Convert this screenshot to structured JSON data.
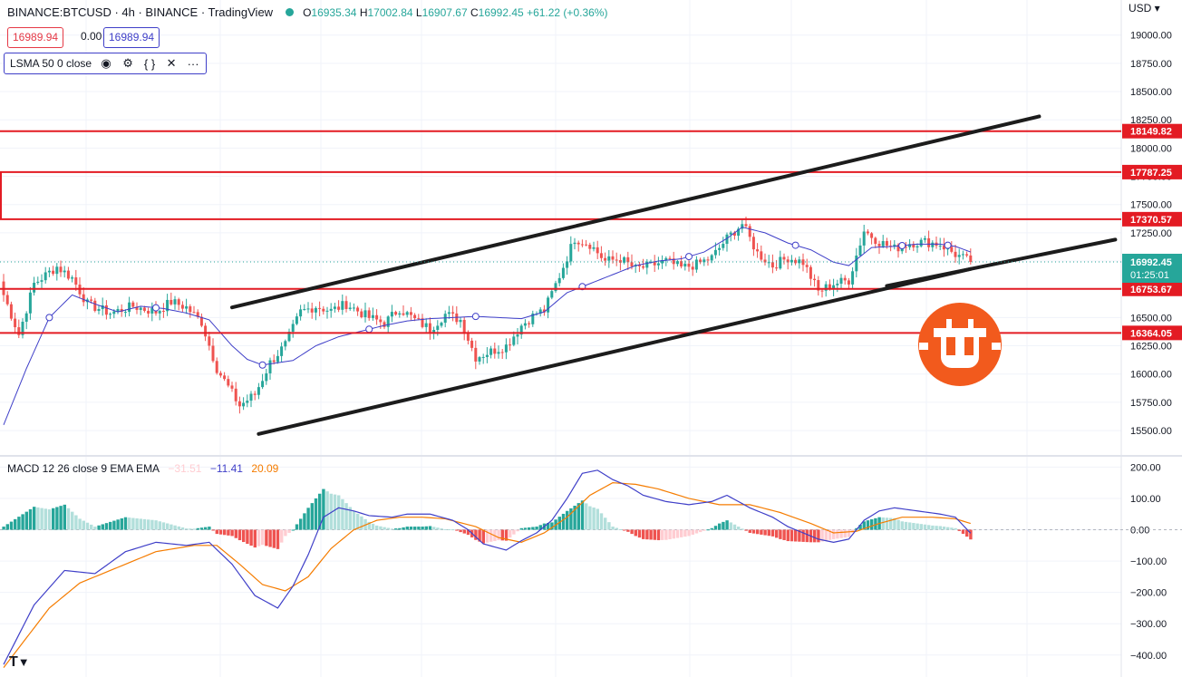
{
  "header": {
    "symbol_title": "BINANCE:BTCUSD · 4h · BINANCE · TradingView",
    "open_label": "O",
    "open": "16935.34",
    "high_label": "H",
    "high": "17002.84",
    "low_label": "L",
    "low": "16907.67",
    "close_label": "C",
    "close": "16992.45",
    "change": "+61.22 (+0.36%)"
  },
  "quote": {
    "bid": "16989.94",
    "spread": "0.00",
    "ask": "16989.94"
  },
  "indicator": {
    "label": "LSMA 50 0 close",
    "icons": [
      "eye-icon",
      "gear-icon",
      "braces-icon",
      "close-icon",
      "more-icon"
    ],
    "icon_glyphs": [
      "◉",
      "⚙",
      "{ }",
      "✕",
      "···"
    ]
  },
  "currency_selector": "USD ▾",
  "macd_legend": {
    "label": "MACD 12 26 close 9 EMA EMA",
    "hist": "−31.51",
    "macd": "−11.41",
    "signal": "20.09"
  },
  "colors": {
    "up": "#26a69a",
    "down": "#ef5350",
    "lsma": "#3f3fc8",
    "level_line": "#e31b23",
    "trendline": "#1c1c1c",
    "macd_line": "#3f3fc8",
    "signal_line": "#f57c00",
    "hist_up_strong": "#26a69a",
    "hist_up_weak": "#b2dfdb",
    "hist_down_strong": "#ef5350",
    "hist_down_weak": "#ffcdd2",
    "logo": "#f25a1d"
  },
  "chart_data": [
    {
      "type": "candlestick",
      "title": "BINANCE:BTCUSD 4h",
      "y_ticks": [
        "19000.00",
        "18750.00",
        "18500.00",
        "18250.00",
        "18000.00",
        "17750.00",
        "17500.00",
        "17250.00",
        "17000.00",
        "16750.00",
        "16500.00",
        "16250.00",
        "16000.00",
        "15750.00",
        "15500.00"
      ],
      "ylim": [
        15300,
        19150
      ],
      "horizontal_levels": [
        "18149.82",
        "17787.25",
        "17370.57",
        "16753.67",
        "16364.05"
      ],
      "current_price": "16992.45",
      "countdown": "01:25:01",
      "grid": true,
      "close_anchors": [
        [
          0,
          16700
        ],
        [
          4,
          16350
        ],
        [
          8,
          16800
        ],
        [
          14,
          16950
        ],
        [
          18,
          16850
        ],
        [
          22,
          16620
        ],
        [
          28,
          16540
        ],
        [
          34,
          16600
        ],
        [
          40,
          16550
        ],
        [
          44,
          16640
        ],
        [
          48,
          16590
        ],
        [
          52,
          16460
        ],
        [
          56,
          16050
        ],
        [
          62,
          15720
        ],
        [
          66,
          15820
        ],
        [
          70,
          16100
        ],
        [
          74,
          16260
        ],
        [
          78,
          16550
        ],
        [
          82,
          16600
        ],
        [
          86,
          16560
        ],
        [
          90,
          16620
        ],
        [
          96,
          16500
        ],
        [
          100,
          16450
        ],
        [
          104,
          16580
        ],
        [
          108,
          16480
        ],
        [
          112,
          16400
        ],
        [
          116,
          16530
        ],
        [
          120,
          16480
        ],
        [
          124,
          16150
        ],
        [
          128,
          16200
        ],
        [
          132,
          16250
        ],
        [
          136,
          16430
        ],
        [
          140,
          16540
        ],
        [
          142,
          16560
        ],
        [
          146,
          16870
        ],
        [
          150,
          17200
        ],
        [
          154,
          17150
        ],
        [
          158,
          17000
        ],
        [
          162,
          17020
        ],
        [
          166,
          16930
        ],
        [
          170,
          16960
        ],
        [
          174,
          17000
        ],
        [
          178,
          16940
        ],
        [
          182,
          16970
        ],
        [
          186,
          17030
        ],
        [
          190,
          17200
        ],
        [
          194,
          17330
        ],
        [
          198,
          17070
        ],
        [
          202,
          16960
        ],
        [
          206,
          17030
        ],
        [
          210,
          16990
        ],
        [
          214,
          16730
        ],
        [
          218,
          16800
        ],
        [
          222,
          16830
        ],
        [
          226,
          17270
        ],
        [
          230,
          17170
        ],
        [
          234,
          17110
        ],
        [
          238,
          17160
        ],
        [
          242,
          17170
        ],
        [
          246,
          17150
        ],
        [
          250,
          17060
        ],
        [
          254,
          16992
        ]
      ],
      "lsma_anchors": [
        [
          0,
          15550
        ],
        [
          6,
          16050
        ],
        [
          12,
          16500
        ],
        [
          18,
          16700
        ],
        [
          24,
          16620
        ],
        [
          30,
          16550
        ],
        [
          36,
          16600
        ],
        [
          42,
          16580
        ],
        [
          48,
          16540
        ],
        [
          54,
          16480
        ],
        [
          60,
          16250
        ],
        [
          64,
          16130
        ],
        [
          68,
          16080
        ],
        [
          72,
          16100
        ],
        [
          76,
          16120
        ],
        [
          82,
          16250
        ],
        [
          88,
          16330
        ],
        [
          94,
          16380
        ],
        [
          100,
          16430
        ],
        [
          106,
          16470
        ],
        [
          112,
          16490
        ],
        [
          118,
          16500
        ],
        [
          124,
          16510
        ],
        [
          130,
          16500
        ],
        [
          136,
          16490
        ],
        [
          142,
          16550
        ],
        [
          148,
          16720
        ],
        [
          154,
          16800
        ],
        [
          160,
          16880
        ],
        [
          166,
          16960
        ],
        [
          172,
          17000
        ],
        [
          178,
          17020
        ],
        [
          184,
          17080
        ],
        [
          190,
          17200
        ],
        [
          194,
          17300
        ],
        [
          200,
          17250
        ],
        [
          206,
          17160
        ],
        [
          212,
          17100
        ],
        [
          218,
          16990
        ],
        [
          222,
          16960
        ],
        [
          228,
          17120
        ],
        [
          234,
          17130
        ],
        [
          240,
          17150
        ],
        [
          246,
          17150
        ],
        [
          250,
          17130
        ],
        [
          254,
          17080
        ]
      ],
      "trendlines": [
        {
          "name": "channel-upper",
          "from": [
            60,
            16590
          ],
          "to": [
            272,
            18280
          ]
        },
        {
          "name": "channel-lower-1",
          "from": [
            67,
            15470
          ],
          "to": [
            254,
            16930
          ]
        },
        {
          "name": "channel-lower-2",
          "from": [
            232,
            16780
          ],
          "to": [
            292,
            17190
          ]
        }
      ]
    },
    {
      "type": "line",
      "title": "MACD 12 26 close 9 EMA EMA",
      "y_ticks": [
        "200.00",
        "100.00",
        "0.00",
        "−100.00",
        "−200.00",
        "−300.00",
        "−400.00"
      ],
      "ylim": [
        -470,
        230
      ],
      "macd_anchors": [
        [
          0,
          -430
        ],
        [
          8,
          -240
        ],
        [
          16,
          -130
        ],
        [
          24,
          -140
        ],
        [
          32,
          -70
        ],
        [
          40,
          -40
        ],
        [
          48,
          -50
        ],
        [
          54,
          -40
        ],
        [
          60,
          -110
        ],
        [
          66,
          -210
        ],
        [
          72,
          -250
        ],
        [
          76,
          -180
        ],
        [
          80,
          -80
        ],
        [
          84,
          40
        ],
        [
          88,
          70
        ],
        [
          92,
          60
        ],
        [
          96,
          45
        ],
        [
          102,
          40
        ],
        [
          106,
          50
        ],
        [
          112,
          50
        ],
        [
          118,
          30
        ],
        [
          122,
          0
        ],
        [
          126,
          -45
        ],
        [
          132,
          -65
        ],
        [
          136,
          -35
        ],
        [
          140,
          -10
        ],
        [
          144,
          30
        ],
        [
          148,
          100
        ],
        [
          152,
          180
        ],
        [
          156,
          190
        ],
        [
          160,
          160
        ],
        [
          164,
          140
        ],
        [
          168,
          110
        ],
        [
          174,
          90
        ],
        [
          180,
          80
        ],
        [
          186,
          90
        ],
        [
          190,
          110
        ],
        [
          196,
          70
        ],
        [
          202,
          40
        ],
        [
          206,
          10
        ],
        [
          210,
          -10
        ],
        [
          214,
          -30
        ],
        [
          218,
          -40
        ],
        [
          222,
          -30
        ],
        [
          226,
          30
        ],
        [
          230,
          60
        ],
        [
          234,
          70
        ],
        [
          240,
          60
        ],
        [
          246,
          50
        ],
        [
          250,
          40
        ],
        [
          254,
          -11
        ]
      ],
      "signal_anchors": [
        [
          0,
          -440
        ],
        [
          12,
          -250
        ],
        [
          20,
          -170
        ],
        [
          30,
          -120
        ],
        [
          40,
          -70
        ],
        [
          50,
          -50
        ],
        [
          56,
          -50
        ],
        [
          62,
          -110
        ],
        [
          68,
          -175
        ],
        [
          74,
          -195
        ],
        [
          80,
          -150
        ],
        [
          86,
          -60
        ],
        [
          92,
          0
        ],
        [
          98,
          30
        ],
        [
          104,
          40
        ],
        [
          110,
          40
        ],
        [
          116,
          35
        ],
        [
          124,
          10
        ],
        [
          130,
          -25
        ],
        [
          136,
          -40
        ],
        [
          142,
          -10
        ],
        [
          148,
          40
        ],
        [
          154,
          110
        ],
        [
          160,
          150
        ],
        [
          166,
          145
        ],
        [
          172,
          130
        ],
        [
          180,
          100
        ],
        [
          188,
          80
        ],
        [
          196,
          80
        ],
        [
          204,
          55
        ],
        [
          212,
          20
        ],
        [
          218,
          -10
        ],
        [
          224,
          -5
        ],
        [
          230,
          20
        ],
        [
          236,
          40
        ],
        [
          244,
          40
        ],
        [
          250,
          35
        ],
        [
          254,
          20
        ]
      ]
    }
  ]
}
